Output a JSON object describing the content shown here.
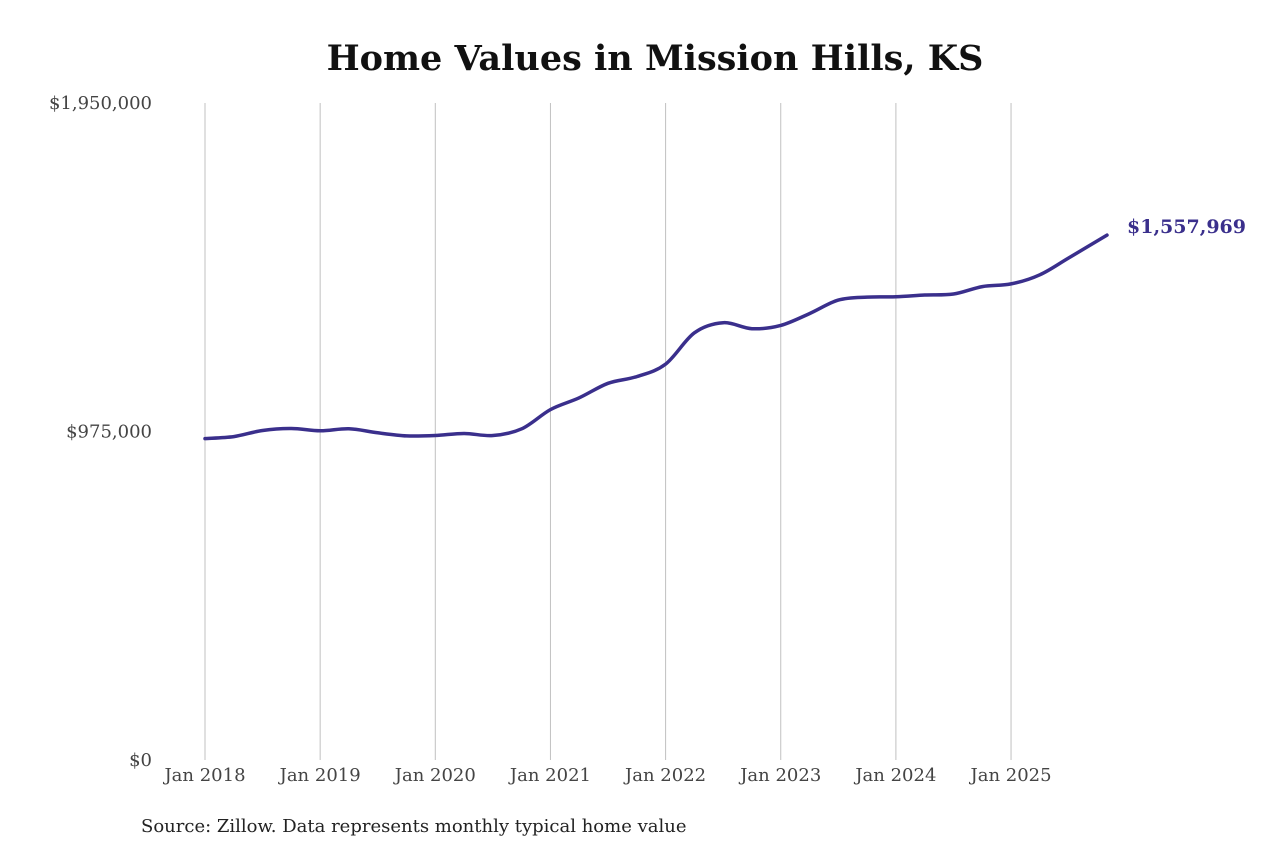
{
  "colors": {
    "line": "#3a2f8c",
    "grid": "#c0c0c0",
    "text": "#444444"
  },
  "chart_data": {
    "type": "line",
    "title": "Home Values in Mission Hills, KS",
    "xlabel": "",
    "ylabel": "",
    "ylim": [
      0,
      1950000
    ],
    "xlim": [
      "2018-01",
      "2025-11"
    ],
    "grid": {
      "x": true,
      "y": false
    },
    "y_ticks": [
      {
        "value": 0,
        "label": "$0"
      },
      {
        "value": 975000,
        "label": "$975,000"
      },
      {
        "value": 1950000,
        "label": "$1,950,000"
      }
    ],
    "x_ticks": [
      {
        "value": "2018-01",
        "label": "Jan 2018"
      },
      {
        "value": "2019-01",
        "label": "Jan 2019"
      },
      {
        "value": "2020-01",
        "label": "Jan 2020"
      },
      {
        "value": "2021-01",
        "label": "Jan 2021"
      },
      {
        "value": "2022-01",
        "label": "Jan 2022"
      },
      {
        "value": "2023-01",
        "label": "Jan 2023"
      },
      {
        "value": "2024-01",
        "label": "Jan 2024"
      },
      {
        "value": "2025-01",
        "label": "Jan 2025"
      }
    ],
    "series": [
      {
        "end_label": "$1,557,969",
        "points": [
          {
            "x": "2018-01",
            "y": 954000
          },
          {
            "x": "2018-04",
            "y": 960000
          },
          {
            "x": "2018-07",
            "y": 978000
          },
          {
            "x": "2018-10",
            "y": 984000
          },
          {
            "x": "2019-01",
            "y": 977000
          },
          {
            "x": "2019-04",
            "y": 983000
          },
          {
            "x": "2019-07",
            "y": 971000
          },
          {
            "x": "2019-10",
            "y": 962000
          },
          {
            "x": "2020-01",
            "y": 963000
          },
          {
            "x": "2020-04",
            "y": 969000
          },
          {
            "x": "2020-07",
            "y": 963000
          },
          {
            "x": "2020-10",
            "y": 983000
          },
          {
            "x": "2021-01",
            "y": 1040000
          },
          {
            "x": "2021-04",
            "y": 1075000
          },
          {
            "x": "2021-07",
            "y": 1118000
          },
          {
            "x": "2021-10",
            "y": 1138000
          },
          {
            "x": "2022-01",
            "y": 1175000
          },
          {
            "x": "2022-04",
            "y": 1268000
          },
          {
            "x": "2022-07",
            "y": 1298000
          },
          {
            "x": "2022-10",
            "y": 1280000
          },
          {
            "x": "2023-01",
            "y": 1290000
          },
          {
            "x": "2023-04",
            "y": 1325000
          },
          {
            "x": "2023-07",
            "y": 1365000
          },
          {
            "x": "2023-10",
            "y": 1374000
          },
          {
            "x": "2024-01",
            "y": 1375000
          },
          {
            "x": "2024-04",
            "y": 1380000
          },
          {
            "x": "2024-07",
            "y": 1383000
          },
          {
            "x": "2024-10",
            "y": 1405000
          },
          {
            "x": "2025-01",
            "y": 1413000
          },
          {
            "x": "2025-04",
            "y": 1440000
          },
          {
            "x": "2025-07",
            "y": 1490000
          },
          {
            "x": "2025-11",
            "y": 1557969
          }
        ]
      }
    ]
  },
  "source_text": "Source: Zillow. Data represents monthly typical home value"
}
